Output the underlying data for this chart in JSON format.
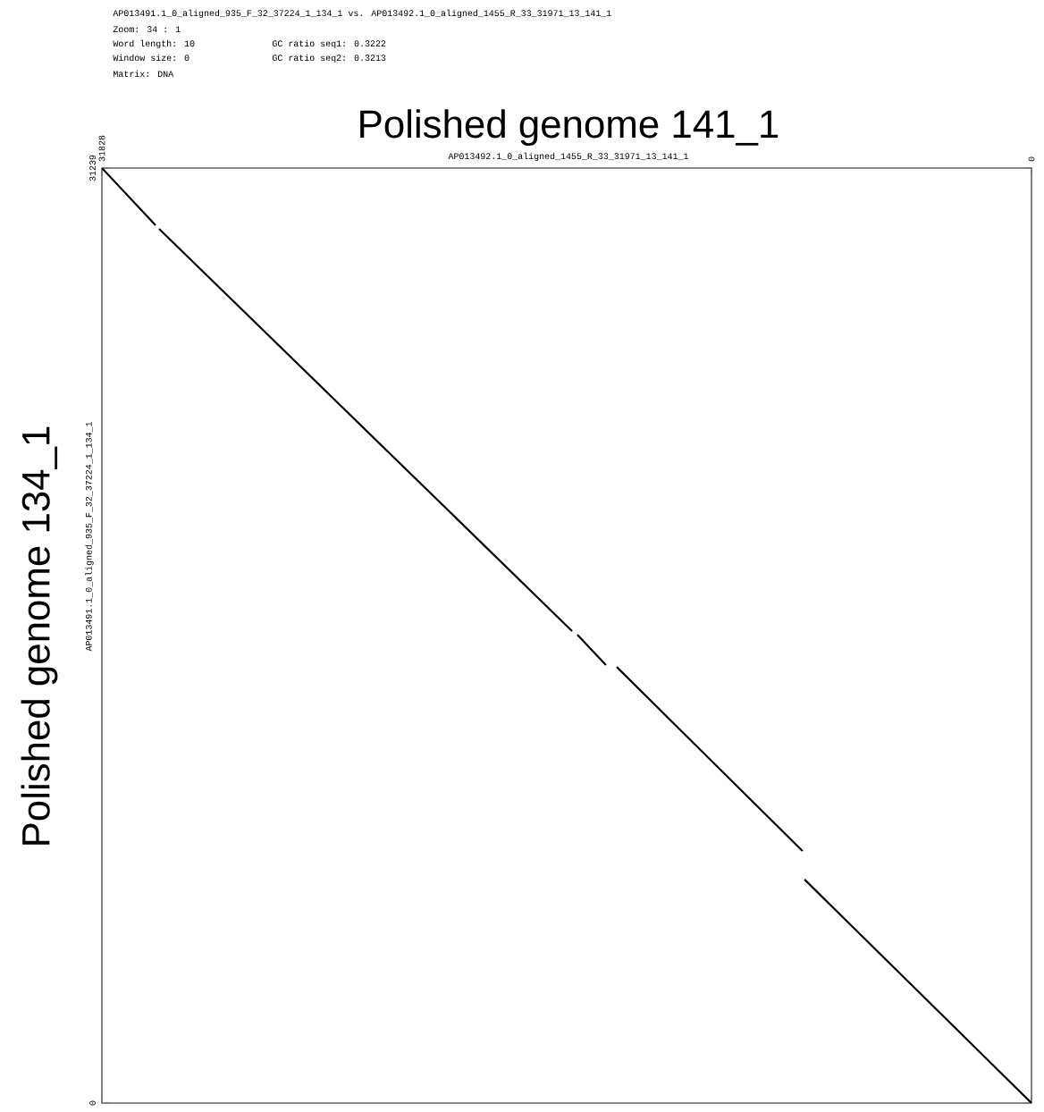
{
  "chart_data": {
    "type": "line",
    "title": "Polished genome 141_1",
    "xlabel": "AP013492.1_0_aligned_1455_R_33_31971_13_141_1",
    "ylabel": "Polished genome 134_1",
    "annotations": [
      "AP013491.1_0_aligned_935_F_32_37224_1_134_1 vs. AP013492.1_0_aligned_1455_R_33_31971_13_141_1",
      "Zoom: 34 : 1",
      "Word length: 10",
      "Window size: 0",
      "Matrix: DNA",
      "GC ratio seq1: 0.3222",
      "GC ratio seq2: 0.3213",
      "AP013491.1_0_aligned_935_F_32_37224_1_134_1"
    ],
    "xlim": [
      31828,
      0
    ],
    "xticks": [
      31828,
      0
    ],
    "ylim": [
      0,
      31239
    ],
    "yticks": [
      0,
      31239
    ],
    "grid": false,
    "marker": "none",
    "line_style": "solid",
    "series": [
      {
        "color": "#000000",
        "x": [
          31828,
          29990,
          null,
          29870,
          15730,
          null,
          15550,
          14570,
          null,
          14200,
          7840,
          null,
          7770,
          0
        ],
        "values": [
          31239,
          29330,
          null,
          29210,
          15770,
          null,
          15650,
          14630,
          null,
          14570,
          8420,
          null,
          7470,
          0
        ]
      }
    ]
  }
}
